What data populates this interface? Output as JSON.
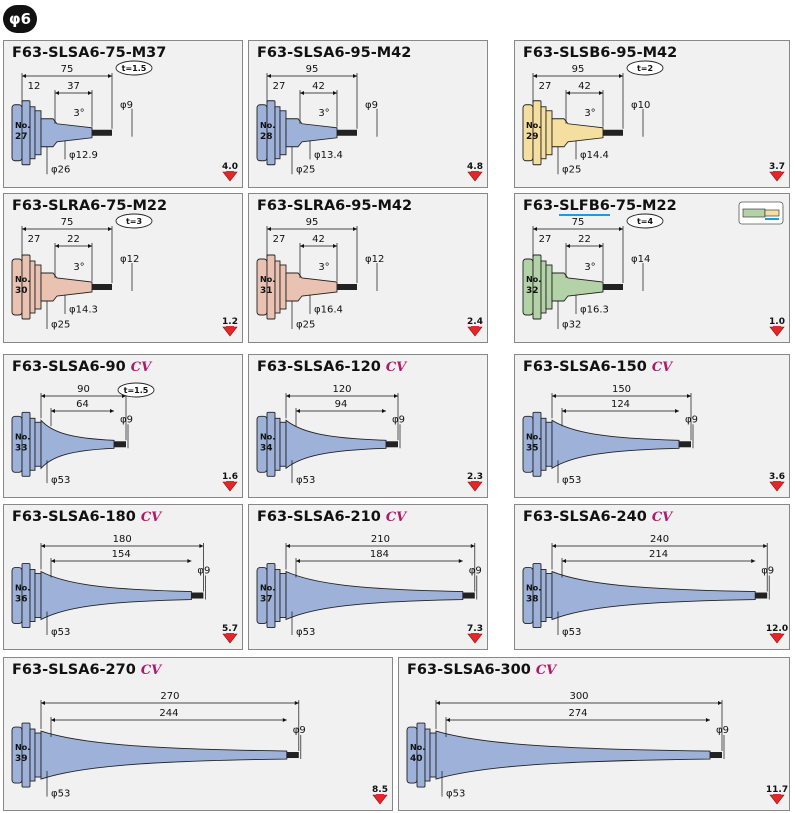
{
  "section_badge": "φ6",
  "colors": {
    "blue": "#9db1d9",
    "yellow": "#f5dfa0",
    "pink": "#e9c2b2",
    "green": "#b3d2a8",
    "arrow": "#e0282a"
  },
  "icons": {
    "weight_arrow": "red-down-arrow-icon",
    "tool_icon": "flat-end-tool-icon"
  },
  "cards": [
    {
      "code": "F63-SLSA6-75-M37",
      "no_label": "No.",
      "no": "27",
      "total": "75",
      "dims": [
        "12",
        "37"
      ],
      "d_tip": "φ9",
      "d_mid": "φ12.9",
      "d_base": "φ26",
      "angle": "3°",
      "t": "t=1.5",
      "weight": "4.0",
      "color": "blue"
    },
    {
      "code": "F63-SLSA6-95-M42",
      "no_label": "No.",
      "no": "28",
      "total": "95",
      "dims": [
        "27",
        "42"
      ],
      "d_tip": "φ9",
      "d_mid": "φ13.4",
      "d_base": "φ25",
      "angle": "3°",
      "weight": "4.8",
      "color": "blue"
    },
    {
      "code": "F63-SLSB6-95-M42",
      "no_label": "No.",
      "no": "29",
      "total": "95",
      "dims": [
        "27",
        "42"
      ],
      "d_tip": "φ10",
      "d_mid": "φ14.4",
      "d_base": "φ25",
      "angle": "3°",
      "t": "t=2",
      "weight": "3.7",
      "color": "yellow"
    },
    {
      "code": "F63-SLRA6-75-M22",
      "no_label": "No.",
      "no": "30",
      "total": "75",
      "dims": [
        "27",
        "22"
      ],
      "d_tip": "φ12",
      "d_mid": "φ14.3",
      "d_base": "φ25",
      "angle": "3°",
      "t": "t=3",
      "weight": "1.2",
      "color": "pink"
    },
    {
      "code": "F63-SLRA6-95-M42",
      "no_label": "No.",
      "no": "31",
      "total": "95",
      "dims": [
        "27",
        "42"
      ],
      "d_tip": "φ12",
      "d_mid": "φ16.4",
      "d_base": "φ25",
      "angle": "3°",
      "weight": "2.4",
      "color": "pink"
    },
    {
      "code_pre": "F63-",
      "code_u": "SLFB6",
      "code_post": "-75-M22",
      "no_label": "No.",
      "no": "32",
      "total": "75",
      "dims": [
        "27",
        "22"
      ],
      "d_tip": "φ14",
      "d_mid": "φ16.3",
      "d_base": "φ32",
      "angle": "3°",
      "t": "t=4",
      "weight": "1.0",
      "color": "green"
    },
    {
      "code": "F63-SLSA6-90",
      "cv": "CV",
      "no_label": "No.",
      "no": "33",
      "total": "90",
      "dims": [
        "64"
      ],
      "d_tip": "φ9",
      "d_base": "φ53",
      "t": "t=1.5",
      "weight": "1.6",
      "color": "blue"
    },
    {
      "code": "F63-SLSA6-120",
      "cv": "CV",
      "no_label": "No.",
      "no": "34",
      "total": "120",
      "dims": [
        "94"
      ],
      "d_tip": "φ9",
      "d_base": "φ53",
      "weight": "2.3",
      "color": "blue"
    },
    {
      "code": "F63-SLSA6-150",
      "cv": "CV",
      "no_label": "No.",
      "no": "35",
      "total": "150",
      "dims": [
        "124"
      ],
      "d_tip": "φ9",
      "d_base": "φ53",
      "weight": "3.6",
      "color": "blue"
    },
    {
      "code": "F63-SLSA6-180",
      "cv": "CV",
      "no_label": "No.",
      "no": "36",
      "total": "180",
      "dims": [
        "154"
      ],
      "d_tip": "φ9",
      "d_base": "φ53",
      "weight": "5.7",
      "color": "blue"
    },
    {
      "code": "F63-SLSA6-210",
      "cv": "CV",
      "no_label": "No.",
      "no": "37",
      "total": "210",
      "dims": [
        "184"
      ],
      "d_tip": "φ9",
      "d_base": "φ53",
      "weight": "7.3",
      "color": "blue"
    },
    {
      "code": "F63-SLSA6-240",
      "cv": "CV",
      "no_label": "No.",
      "no": "38",
      "total": "240",
      "dims": [
        "214"
      ],
      "d_tip": "φ9",
      "d_base": "φ53",
      "weight": "12.0",
      "color": "blue"
    },
    {
      "code": "F63-SLSA6-270",
      "cv": "CV",
      "no_label": "No.",
      "no": "39",
      "total": "270",
      "dims": [
        "244"
      ],
      "d_tip": "φ9",
      "d_base": "φ53",
      "weight": "8.5",
      "color": "blue"
    },
    {
      "code": "F63-SLSA6-300",
      "cv": "CV",
      "no_label": "No.",
      "no": "40",
      "total": "300",
      "dims": [
        "274"
      ],
      "d_tip": "φ9",
      "d_base": "φ53",
      "weight": "11.7",
      "color": "blue"
    }
  ]
}
